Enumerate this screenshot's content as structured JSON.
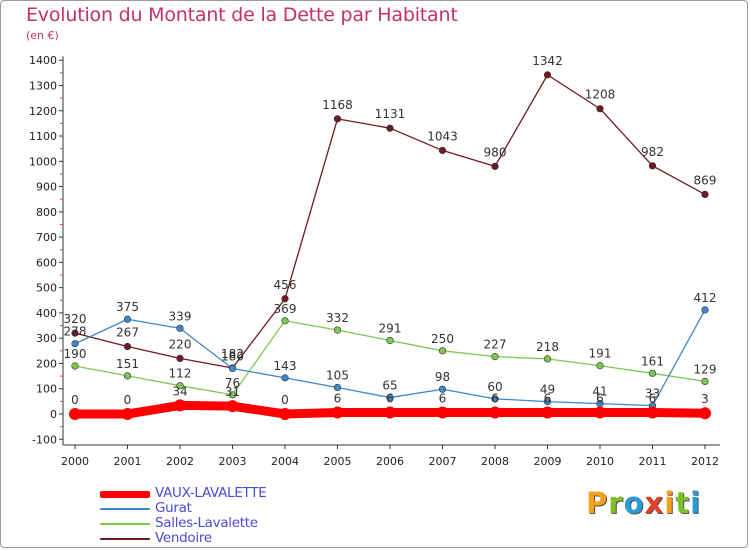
{
  "title": "Evolution du Montant de la Dette par Habitant",
  "subtitle": "(en €)",
  "logo": {
    "text": "Proxiti",
    "letters": [
      {
        "ch": "P",
        "color": "#f2a11f"
      },
      {
        "ch": "r",
        "color": "#7fbf2a"
      },
      {
        "ch": "o",
        "color": "#2a9ad6"
      },
      {
        "ch": "x",
        "color": "#e0402b"
      },
      {
        "ch": "i",
        "color": "#f2a11f"
      },
      {
        "ch": "t",
        "color": "#7fbf2a"
      },
      {
        "ch": "i",
        "color": "#2a9ad6"
      }
    ]
  },
  "chart_data": {
    "type": "line",
    "title": "Evolution du Montant de la Dette par Habitant",
    "subtitle": "(en €)",
    "xlabel": "",
    "ylabel": "",
    "ylim": [
      -100,
      1400
    ],
    "yticks": [
      -100,
      0,
      100,
      200,
      300,
      400,
      500,
      600,
      700,
      800,
      900,
      1000,
      1100,
      1200,
      1300,
      1400
    ],
    "grid": false,
    "legend_position": "bottom-left",
    "categories": [
      "2000",
      "2001",
      "2002",
      "2003",
      "2004",
      "2005",
      "2006",
      "2007",
      "2008",
      "2009",
      "2010",
      "2011",
      "2012"
    ],
    "series": [
      {
        "name": "VAUX-LAVALETTE",
        "color": "#ff0000",
        "values": [
          0,
          0,
          34,
          31,
          0,
          6,
          6,
          6,
          6,
          6,
          6,
          6,
          3
        ]
      },
      {
        "name": "Gurat",
        "color": "#3e88c8",
        "values": [
          278,
          375,
          339,
          180,
          143,
          105,
          65,
          98,
          60,
          49,
          41,
          33,
          412
        ]
      },
      {
        "name": "Salles-Lavalette",
        "color": "#7ec850",
        "values": [
          190,
          151,
          112,
          76,
          369,
          332,
          291,
          250,
          227,
          218,
          191,
          161,
          129
        ]
      },
      {
        "name": "Vendoire",
        "color": "#6e1a24",
        "values": [
          320,
          267,
          220,
          182,
          456,
          1168,
          1131,
          1043,
          980,
          1342,
          1208,
          982,
          869
        ]
      }
    ],
    "labels": [
      [
        "0",
        "0",
        "34",
        "31",
        "0",
        "6",
        "6",
        "6",
        "6",
        "6",
        "6",
        "6",
        "3"
      ],
      [
        "278",
        "375",
        "339",
        "180",
        "143",
        "105",
        "65",
        "98",
        "60",
        "49",
        "41",
        "33",
        "412"
      ],
      [
        "190",
        "151",
        "112",
        "76",
        "369",
        "332",
        "291",
        "250",
        "227",
        "218",
        "191",
        "161",
        "129"
      ],
      [
        "320",
        "267",
        "220",
        "182",
        "456",
        "1168",
        "1131",
        "1043",
        "980",
        "1342",
        "1208",
        "982",
        "869"
      ]
    ]
  }
}
